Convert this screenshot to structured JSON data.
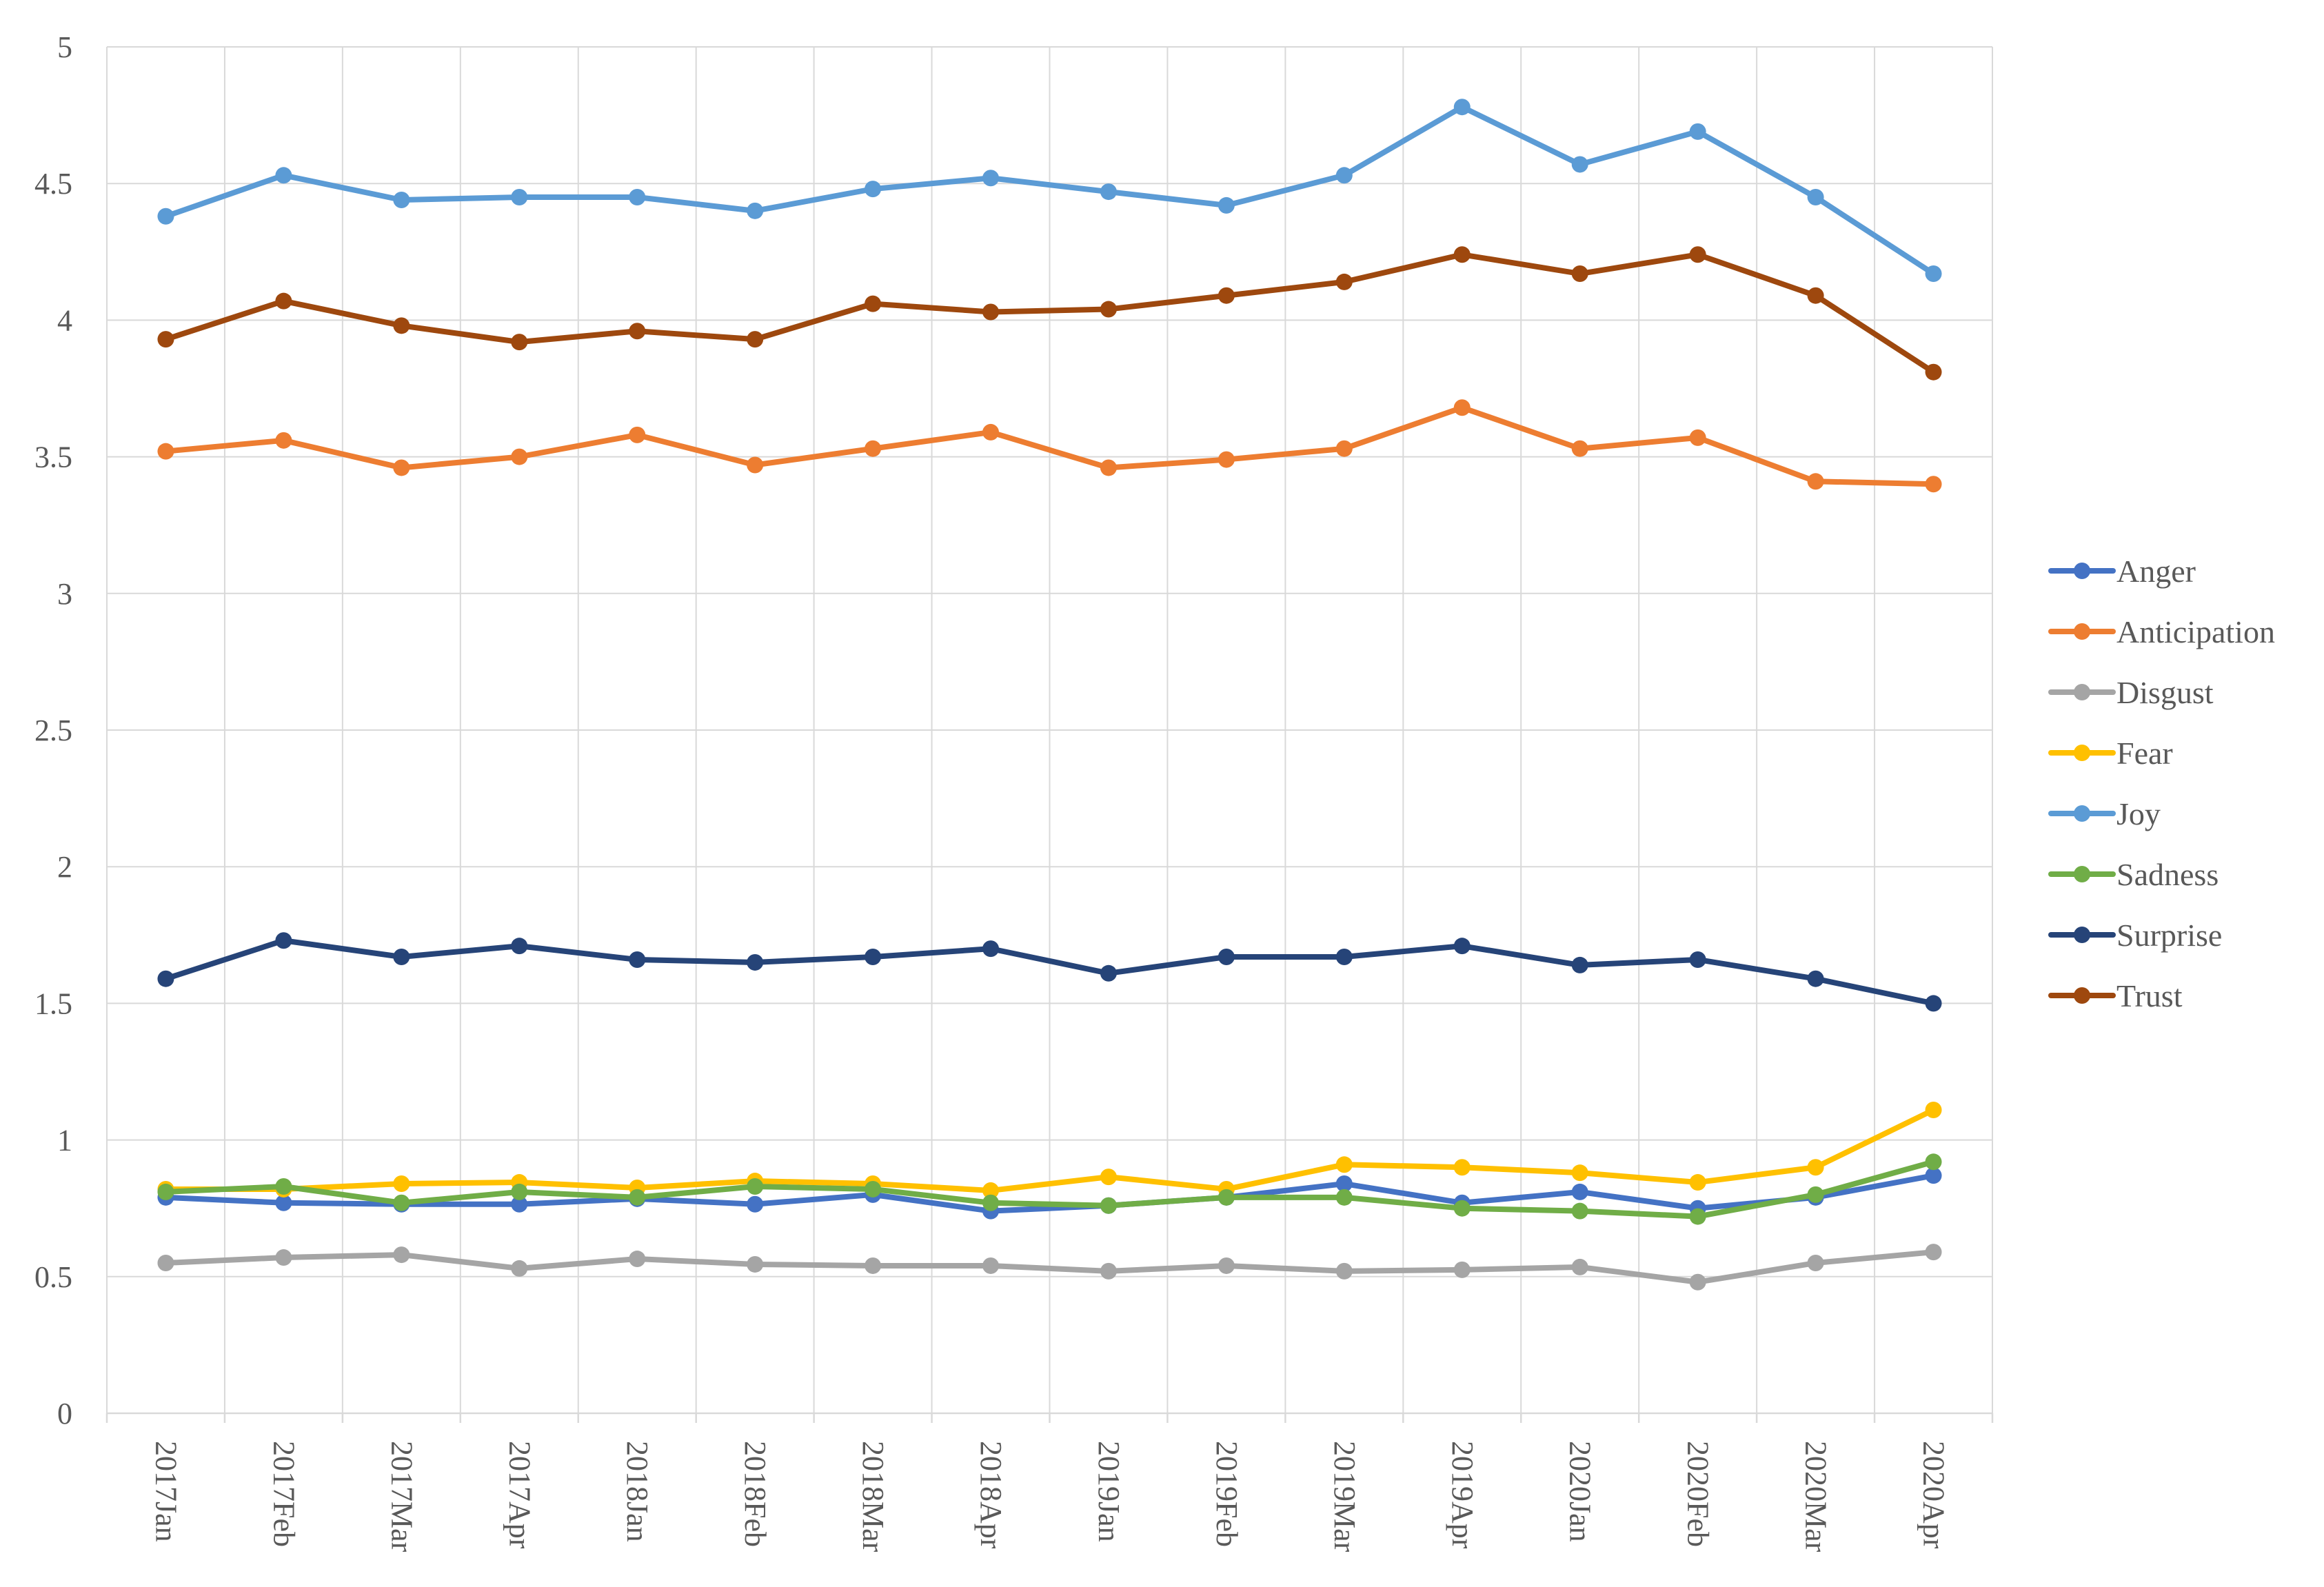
{
  "chart_data": {
    "type": "line",
    "title": "",
    "xlabel": "",
    "ylabel": "",
    "ylim": [
      0,
      5
    ],
    "yticks": [
      0,
      0.5,
      1,
      1.5,
      2,
      2.5,
      3,
      3.5,
      4,
      4.5,
      5
    ],
    "ytick_labels": [
      "0",
      "0.5",
      "1",
      "1.5",
      "2",
      "2.5",
      "3",
      "3.5",
      "4",
      "4.5",
      "5"
    ],
    "grid": true,
    "legend_position": "right",
    "categories": [
      "2017Jan",
      "2017Feb",
      "2017Mar",
      "2017Apr",
      "2018Jan",
      "2018Feb",
      "2018Mar",
      "2018Apr",
      "2019Jan",
      "2019Feb",
      "2019Mar",
      "2019Apr",
      "2020Jan",
      "2020Feb",
      "2020Mar",
      "2020Apr"
    ],
    "series": [
      {
        "name": "Anger",
        "color": "#4472c4",
        "values": [
          0.79,
          0.77,
          0.765,
          0.765,
          0.785,
          0.765,
          0.8,
          0.74,
          0.76,
          0.79,
          0.84,
          0.77,
          0.81,
          0.75,
          0.79,
          0.87
        ]
      },
      {
        "name": "Anticipation",
        "color": "#ed7d31",
        "values": [
          3.52,
          3.56,
          3.46,
          3.5,
          3.58,
          3.47,
          3.53,
          3.59,
          3.46,
          3.49,
          3.53,
          3.68,
          3.53,
          3.57,
          3.41,
          3.4
        ]
      },
      {
        "name": "Disgust",
        "color": "#a5a5a5",
        "values": [
          0.55,
          0.57,
          0.58,
          0.53,
          0.565,
          0.545,
          0.54,
          0.54,
          0.52,
          0.54,
          0.52,
          0.525,
          0.535,
          0.48,
          0.55,
          0.59
        ]
      },
      {
        "name": "Fear",
        "color": "#ffc000",
        "values": [
          0.82,
          0.82,
          0.84,
          0.845,
          0.825,
          0.85,
          0.84,
          0.815,
          0.865,
          0.82,
          0.91,
          0.9,
          0.88,
          0.845,
          0.9,
          1.11
        ]
      },
      {
        "name": "Joy",
        "color": "#5b9bd5",
        "values": [
          4.38,
          4.53,
          4.44,
          4.45,
          4.45,
          4.4,
          4.48,
          4.52,
          4.47,
          4.42,
          4.53,
          4.78,
          4.57,
          4.69,
          4.45,
          4.17
        ]
      },
      {
        "name": "Sadness",
        "color": "#70ad47",
        "values": [
          0.81,
          0.83,
          0.77,
          0.81,
          0.79,
          0.83,
          0.82,
          0.77,
          0.76,
          0.79,
          0.79,
          0.75,
          0.74,
          0.72,
          0.8,
          0.92
        ]
      },
      {
        "name": "Surprise",
        "color": "#264478",
        "values": [
          1.59,
          1.73,
          1.67,
          1.71,
          1.66,
          1.65,
          1.67,
          1.7,
          1.61,
          1.67,
          1.67,
          1.71,
          1.64,
          1.66,
          1.59,
          1.5
        ]
      },
      {
        "name": "Trust",
        "color": "#9e480e",
        "values": [
          3.93,
          4.07,
          3.98,
          3.92,
          3.96,
          3.93,
          4.06,
          4.03,
          4.04,
          4.09,
          4.14,
          4.24,
          4.17,
          4.24,
          4.09,
          3.81
        ]
      }
    ]
  }
}
